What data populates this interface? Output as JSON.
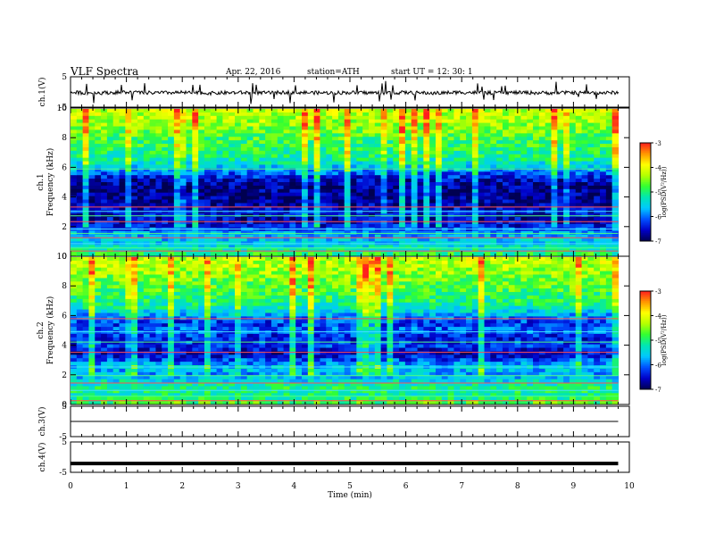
{
  "header": {
    "title": "VLF Spectra",
    "date": "Apr. 22, 2016",
    "station": "station=ATH",
    "start": "start  UT  =   12: 30: 1"
  },
  "colors": {
    "trace": "#000000",
    "colormap": [
      "#000050",
      "#0000c8",
      "#0050ff",
      "#00c8ff",
      "#00e6b4",
      "#32ff32",
      "#b4ff00",
      "#ffff00",
      "#ff9600",
      "#ff1e1e",
      "#ffffff"
    ]
  },
  "chart_data": [
    {
      "type": "line",
      "panel": "ch1-waveform",
      "ylabel": "ch.1(V)",
      "ylim": [
        -5,
        5
      ],
      "ytick_labels": [
        "5",
        "-5"
      ],
      "x": [
        0,
        0.5,
        1,
        1.5,
        2,
        2.5,
        3,
        3.5,
        4,
        4.5,
        5,
        5.5,
        6,
        6.5,
        7,
        7.5,
        8,
        8.5,
        9,
        9.5,
        9.8
      ],
      "y": [
        -0.2,
        -0.3,
        -0.1,
        -0.3,
        -0.2,
        -0.4,
        -0.2,
        -0.3,
        -0.1,
        -0.3,
        -0.2,
        -0.3,
        -0.2,
        -0.4,
        -0.1,
        -0.3,
        -0.2,
        -0.3,
        -0.2,
        -0.3,
        -0.2
      ]
    },
    {
      "type": "heatmap",
      "panel": "ch1-spectrogram",
      "ylabel_channel": "ch.1",
      "ylabel": "Frequency  (kHz)",
      "ylim": [
        0,
        10
      ],
      "ytick_labels": [
        "0",
        "2",
        "4",
        "6",
        "8",
        "10"
      ],
      "xlim": [
        0,
        9.8
      ],
      "value_label": "log(PSD(V²/Hz))",
      "colorbar_range": [
        -7,
        -3
      ],
      "colorbar_tick_labels": [
        "-3",
        "-4",
        "-5",
        "-6",
        "-7"
      ],
      "freq_profile_khz": [
        0,
        0.5,
        1,
        1.5,
        2,
        2.5,
        3,
        3.5,
        4,
        4.5,
        5,
        5.5,
        6,
        6.5,
        7,
        7.5,
        8,
        8.5,
        9,
        9.5,
        10
      ],
      "mean_log_psd": [
        -4.8,
        -5.4,
        -5.6,
        -5.8,
        -6.4,
        -6.6,
        -6.4,
        -6.7,
        -6.8,
        -6.8,
        -6.7,
        -6.2,
        -5.6,
        -5.2,
        -5.0,
        -4.9,
        -4.8,
        -4.6,
        -4.4,
        -4.3,
        -4.2
      ],
      "lines_khz": [
        0.3,
        0.5,
        0.8,
        1.2,
        1.5,
        1.8,
        2.3,
        2.7,
        3.0,
        3.3,
        5.9
      ]
    },
    {
      "type": "heatmap",
      "panel": "ch2-spectrogram",
      "ylabel_channel": "ch.2",
      "ylabel": "Frequency  (kHz)",
      "ylim": [
        0,
        10
      ],
      "ytick_labels": [
        "0",
        "2",
        "4",
        "6",
        "8",
        "10"
      ],
      "xlim": [
        0,
        9.8
      ],
      "value_label": "log(PSD(V²/Hz))",
      "colorbar_range": [
        -7,
        -3
      ],
      "colorbar_tick_labels": [
        "-3",
        "-4",
        "-5",
        "-6",
        "-7"
      ],
      "freq_profile_khz": [
        0,
        0.5,
        1,
        1.5,
        2,
        2.5,
        3,
        3.5,
        4,
        4.5,
        5,
        5.5,
        6,
        6.5,
        7,
        7.5,
        8,
        8.5,
        9,
        9.5,
        10
      ],
      "mean_log_psd": [
        -4.6,
        -5.2,
        -5.0,
        -5.4,
        -5.8,
        -5.6,
        -6.2,
        -6.6,
        -6.2,
        -6.4,
        -6.0,
        -6.3,
        -5.8,
        -5.3,
        -5.0,
        -4.9,
        -4.7,
        -4.6,
        -4.4,
        -4.3,
        -4.2
      ],
      "lines_khz": [
        0.2,
        0.5,
        0.9,
        1.4,
        1.9,
        2.5,
        3.5,
        4.2,
        4.9,
        5.8
      ]
    },
    {
      "type": "line",
      "panel": "ch3-waveform",
      "ylabel": "ch.3(V)",
      "ylim": [
        -5,
        5
      ],
      "ytick_labels": [
        "5",
        "-5"
      ],
      "x": [
        0,
        9.8
      ],
      "y": [
        0,
        0
      ]
    },
    {
      "type": "line",
      "panel": "ch4-waveform",
      "ylabel": "ch.4(V)",
      "ylim": [
        -5,
        5
      ],
      "ytick_labels": [
        "5",
        "-5"
      ],
      "x": [
        0,
        9.8
      ],
      "y": [
        -2.1,
        -2.1
      ]
    }
  ],
  "xaxis": {
    "label": "Time  (min)",
    "range": [
      0,
      10
    ],
    "tick_labels": [
      "0",
      "1",
      "2",
      "3",
      "4",
      "5",
      "6",
      "7",
      "8",
      "9",
      "10"
    ]
  }
}
